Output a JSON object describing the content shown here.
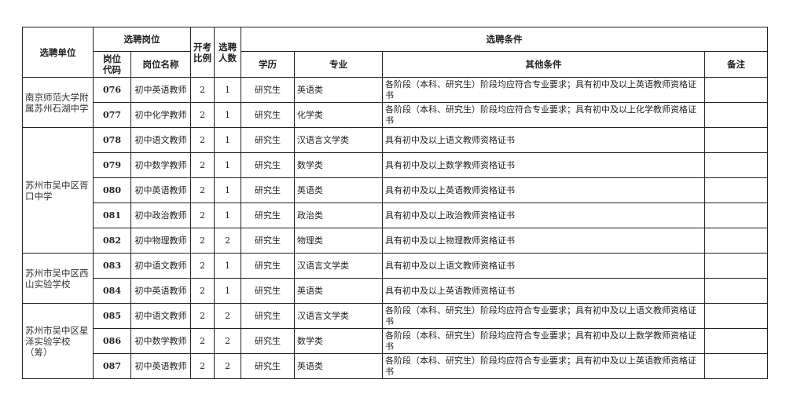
{
  "headers": {
    "unit": "选聘单位",
    "position": "选聘岗位",
    "code": "岗位代码",
    "name": "岗位名称",
    "ratio": "开考比例",
    "count": "选聘人数",
    "conditions": "选聘条件",
    "education": "学历",
    "major": "专业",
    "other": "其他条件",
    "note": "备注"
  },
  "groups": [
    {
      "unit": "南京师范大学附属苏州石湖中学",
      "rows": [
        {
          "code": "076",
          "name": "初中英语教师",
          "ratio": "2",
          "count": "1",
          "education": "研究生",
          "major": "英语类",
          "other": "各阶段（本科、研究生）阶段均应符合专业要求；具有初中及以上英语教师资格证书",
          "note": ""
        },
        {
          "code": "077",
          "name": "初中化学教师",
          "ratio": "2",
          "count": "1",
          "education": "研究生",
          "major": "化学类",
          "other": "各阶段（本科、研究生）阶段均应符合专业要求；具有初中及以上化学教师资格证书",
          "note": ""
        }
      ]
    },
    {
      "unit": "苏州市吴中区胥口中学",
      "rows": [
        {
          "code": "078",
          "name": "初中语文教师",
          "ratio": "2",
          "count": "1",
          "education": "研究生",
          "major": "汉语言文学类",
          "other": "具有初中及以上语文教师资格证书",
          "note": ""
        },
        {
          "code": "079",
          "name": "初中数学教师",
          "ratio": "2",
          "count": "1",
          "education": "研究生",
          "major": "数学类",
          "other": "具有初中及以上数学教师资格证书",
          "note": ""
        },
        {
          "code": "080",
          "name": "初中英语教师",
          "ratio": "2",
          "count": "1",
          "education": "研究生",
          "major": "英语类",
          "other": "具有初中及以上英语教师资格证书",
          "note": ""
        },
        {
          "code": "081",
          "name": "初中政治教师",
          "ratio": "2",
          "count": "1",
          "education": "研究生",
          "major": "政治类",
          "other": "具有初中及以上政治教师资格证书",
          "note": ""
        },
        {
          "code": "082",
          "name": "初中物理教师",
          "ratio": "2",
          "count": "2",
          "education": "研究生",
          "major": "物理类",
          "other": "具有初中及以上物理教师资格证书",
          "note": ""
        }
      ]
    },
    {
      "unit": "苏州市吴中区西山实验学校",
      "rows": [
        {
          "code": "083",
          "name": "初中语文教师",
          "ratio": "2",
          "count": "1",
          "education": "研究生",
          "major": "汉语言文学类",
          "other": "具有初中及以上语文教师资格证书",
          "note": ""
        },
        {
          "code": "084",
          "name": "初中英语教师",
          "ratio": "2",
          "count": "1",
          "education": "研究生",
          "major": "英语类",
          "other": "具有初中及以上英语教师资格证书",
          "note": ""
        }
      ]
    },
    {
      "unit": "苏州市吴中区星泽实验学校（筹）",
      "rows": [
        {
          "code": "085",
          "name": "初中语文教师",
          "ratio": "2",
          "count": "2",
          "education": "研究生",
          "major": "汉语言文学类",
          "other": "各阶段（本科、研究生）阶段均应符合专业要求；具有初中及以上语文教师资格证书",
          "note": ""
        },
        {
          "code": "086",
          "name": "初中数学教师",
          "ratio": "2",
          "count": "2",
          "education": "研究生",
          "major": "数学类",
          "other": "各阶段（本科、研究生）阶段均应符合专业要求；具有初中及以上数学教师资格证书",
          "note": ""
        },
        {
          "code": "087",
          "name": "初中英语教师",
          "ratio": "2",
          "count": "2",
          "education": "研究生",
          "major": "英语类",
          "other": "各阶段（本科、研究生）阶段均应符合专业要求；具有初中及以上英语教师资格证书",
          "note": ""
        }
      ]
    }
  ]
}
